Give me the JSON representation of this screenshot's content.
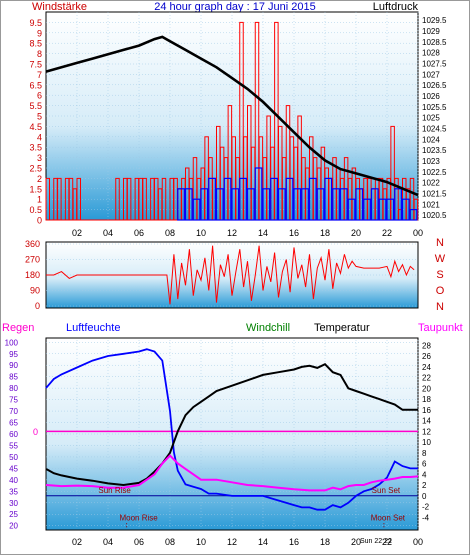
{
  "header": {
    "left_label": "Windstärke",
    "title": "24 hour graph day : 17 Juni 2015",
    "right_label": "Luftdruck"
  },
  "colors": {
    "wind_gust": "#ff0000",
    "wind_avg": "#0000ff",
    "pressure": "#000000",
    "direction": "#ff0000",
    "humidity": "#0000ff",
    "temperature": "#000000",
    "dewpoint": "#ff00ff",
    "rain": "#ff00cc",
    "windchill": "#008000",
    "axis_red": "#cc0000",
    "axis_purple": "#6600cc",
    "sun_line": "#000099"
  },
  "chart_data": [
    {
      "type": "bar",
      "title": "",
      "left_axis_title": "Windstärke",
      "right_axis_title": "Luftdruck",
      "x_ticks": [
        "02",
        "04",
        "06",
        "08",
        "10",
        "12",
        "14",
        "16",
        "18",
        "20",
        "22",
        "00"
      ],
      "y_left_ticks": [
        "0",
        "0.5",
        "1",
        "1.5",
        "2",
        "2.5",
        "3",
        "3.5",
        "4",
        "4.5",
        "5",
        "5.5",
        "6",
        "6.5",
        "7",
        "7.5",
        "8",
        "8.5",
        "9",
        "9.5"
      ],
      "y_left_range": [
        0,
        9.5
      ],
      "y_right_ticks": [
        "1020.5",
        "1021",
        "1021.5",
        "1022",
        "1022.5",
        "1023",
        "1023.5",
        "1024",
        "1024.5",
        "1025",
        "1025.5",
        "1026",
        "1026.5",
        "1027",
        "1027.5",
        "1028",
        "1028.5",
        "1029",
        "1029.5"
      ],
      "y_right_range": [
        1020.5,
        1029.5
      ],
      "series": [
        {
          "role": "gust",
          "x": [
            0,
            0.25,
            0.5,
            0.75,
            1,
            1.25,
            1.5,
            1.75,
            2,
            2.25,
            2.5,
            2.75,
            3,
            3.25,
            3.5,
            3.75,
            4,
            4.25,
            4.5,
            4.75,
            5,
            5.25,
            5.5,
            5.75,
            6,
            6.25,
            6.5,
            6.75,
            7,
            7.25,
            7.5,
            7.75,
            8,
            8.25,
            8.5,
            8.75,
            9,
            9.25,
            9.5,
            9.75,
            10,
            10.25,
            10.5,
            10.75,
            11,
            11.25,
            11.5,
            11.75,
            12,
            12.25,
            12.5,
            12.75,
            13,
            13.25,
            13.5,
            13.75,
            14,
            14.25,
            14.5,
            14.75,
            15,
            15.25,
            15.5,
            15.75,
            16,
            16.25,
            16.5,
            16.75,
            17,
            17.25,
            17.5,
            17.75,
            18,
            18.25,
            18.5,
            18.75,
            19,
            19.25,
            19.5,
            19.75,
            20,
            20.25,
            20.5,
            20.75,
            21,
            21.25,
            21.5,
            21.75,
            22,
            22.25,
            22.5,
            22.75,
            23,
            23.25,
            23.5,
            23.75
          ],
          "values": [
            2,
            0,
            2,
            2,
            0,
            2,
            2,
            1.5,
            2,
            0,
            0,
            0,
            0,
            0,
            0,
            0,
            0,
            0,
            2,
            0,
            2,
            2,
            0,
            2,
            2,
            2,
            0,
            2,
            2,
            1.5,
            2,
            0,
            2,
            2,
            1.5,
            2,
            2.5,
            2,
            3,
            2,
            2.5,
            4,
            3,
            2,
            4.5,
            3.5,
            3,
            5.5,
            4,
            3,
            9.5,
            4,
            5.5,
            3.5,
            9.5,
            4,
            3,
            5,
            3.5,
            9.5,
            4.5,
            3,
            5.5,
            4,
            3.5,
            5,
            3,
            2.5,
            4,
            3,
            2.5,
            3.5,
            2.5,
            2,
            3,
            2.5,
            2,
            3,
            2,
            2.5,
            2,
            1.5,
            2,
            2,
            1.5,
            2,
            2,
            1.5,
            2,
            4.5,
            2,
            0.5,
            2,
            1.5,
            2,
            1
          ]
        },
        {
          "role": "average",
          "x": [
            8.5,
            9,
            9.5,
            10,
            10.5,
            11,
            11.5,
            12,
            12.5,
            13,
            13.5,
            14,
            14.5,
            15,
            15.5,
            16,
            16.5,
            17,
            17.5,
            18,
            18.5,
            19,
            19.5,
            20,
            20.5,
            21,
            21.5,
            22,
            22.5,
            23,
            23.5
          ],
          "values": [
            1.5,
            1.5,
            1,
            1.5,
            2,
            1.5,
            2,
            1.5,
            2,
            1.5,
            2.5,
            1.5,
            2,
            1.5,
            2,
            1.5,
            1.5,
            2,
            1.5,
            2,
            1.5,
            1.5,
            1,
            1.5,
            1,
            1.5,
            1,
            1,
            1.5,
            1,
            0.5
          ]
        },
        {
          "role": "pressure",
          "x": [
            0,
            1,
            2,
            3,
            4,
            5,
            6,
            7,
            7.5,
            8,
            9,
            10,
            11,
            12,
            13,
            14,
            15,
            16,
            17,
            18,
            19,
            20,
            21,
            22,
            23,
            24
          ],
          "values": [
            1027.1,
            1027.3,
            1027.5,
            1027.7,
            1027.9,
            1028.1,
            1028.3,
            1028.6,
            1028.7,
            1028.5,
            1028.1,
            1027.7,
            1027.3,
            1026.8,
            1026.3,
            1025.7,
            1025,
            1024.3,
            1023.6,
            1023,
            1022.6,
            1022.4,
            1022.2,
            1022,
            1021.7,
            1021.4
          ]
        }
      ]
    },
    {
      "type": "line",
      "title": "",
      "compass_labels": [
        "N",
        "W",
        "S",
        "O",
        "N"
      ],
      "y_ticks": [
        "0",
        "90",
        "180",
        "270",
        "360"
      ],
      "y_range": [
        0,
        360
      ],
      "x_range": [
        0,
        24
      ],
      "series": [
        {
          "role": "direction",
          "x": [
            0,
            0.5,
            1,
            1.5,
            2,
            3,
            4,
            5,
            6,
            7,
            7.8,
            8,
            8.25,
            8.5,
            8.75,
            9,
            9.25,
            9.5,
            9.75,
            10,
            10.25,
            10.5,
            10.75,
            11,
            11.25,
            11.5,
            11.75,
            12,
            12.25,
            12.5,
            12.75,
            13,
            13.25,
            13.5,
            13.75,
            14,
            14.25,
            14.5,
            14.75,
            15,
            15.25,
            15.5,
            15.75,
            16,
            16.25,
            16.5,
            16.75,
            17,
            17.25,
            17.5,
            17.75,
            18,
            18.25,
            18.5,
            18.75,
            19,
            19.25,
            19.5,
            19.75,
            20,
            20.5,
            21,
            21.5,
            22,
            22.25,
            22.5,
            22.75,
            23,
            23.25,
            23.5,
            23.75
          ],
          "values": [
            180,
            180,
            200,
            160,
            180,
            180,
            180,
            180,
            180,
            180,
            180,
            10,
            300,
            40,
            250,
            120,
            330,
            60,
            210,
            150,
            280,
            90,
            350,
            20,
            240,
            170,
            300,
            60,
            200,
            330,
            110,
            260,
            30,
            180,
            350,
            90,
            230,
            140,
            310,
            50,
            200,
            270,
            80,
            340,
            160,
            240,
            110,
            300,
            40,
            220,
            280,
            150,
            330,
            100,
            250,
            190,
            300,
            220,
            260,
            230,
            220,
            220,
            220,
            230,
            170,
            260,
            200,
            240,
            180,
            230,
            210
          ]
        }
      ]
    },
    {
      "type": "line",
      "title": "",
      "legend": [
        "Regen",
        "Luftfeuchte",
        "Windchill",
        "Temperatur",
        "Taupunkt"
      ],
      "x_ticks": [
        "02",
        "04",
        "06",
        "08",
        "10",
        "12",
        "14",
        "16",
        "18",
        "20",
        "22",
        "00"
      ],
      "y_left_ticks": [
        "20",
        "25",
        "30",
        "35",
        "40",
        "45",
        "50",
        "55",
        "60",
        "65",
        "70",
        "75",
        "80",
        "85",
        "90",
        "95",
        "100"
      ],
      "y_left_range": [
        20,
        100
      ],
      "y_right_ticks": [
        "-4",
        "-2",
        "0",
        "2",
        "4",
        "6",
        "8",
        "10",
        "12",
        "14",
        "16",
        "18",
        "20",
        "22",
        "24",
        "26",
        "28"
      ],
      "y_right_range": [
        -6,
        29
      ],
      "rain_label": "0",
      "annotations": [
        {
          "label": "Sun Rise",
          "x": 5.2
        },
        {
          "label": "Sun Set",
          "x": 21.8
        },
        {
          "label": "Moon Rise",
          "x": 5.2
        },
        {
          "label": "Moon Set",
          "x": 21.8
        },
        {
          "label": "Sun 22 22",
          "x": 21.8
        }
      ],
      "series": [
        {
          "name": "Luftfeuchte",
          "x": [
            0,
            0.5,
            1,
            2,
            3,
            4,
            5,
            6,
            6.5,
            7,
            7.5,
            8,
            8.25,
            8.5,
            9,
            9.5,
            10,
            10.5,
            11,
            12,
            13,
            14,
            15,
            16,
            16.5,
            17,
            17.5,
            18,
            18.5,
            19,
            19.5,
            20,
            20.5,
            21,
            21.5,
            22,
            22.5,
            23,
            23.5,
            24
          ],
          "values": [
            80,
            84,
            86,
            89,
            92,
            94,
            95,
            96,
            97,
            96,
            92,
            70,
            52,
            44,
            38,
            37,
            36,
            34,
            34,
            33,
            33,
            33,
            31,
            29,
            28,
            28,
            27,
            27,
            29,
            28,
            30,
            33,
            35,
            36,
            38,
            41,
            48,
            46,
            45,
            45
          ]
        },
        {
          "name": "Temperatur",
          "x": [
            0,
            0.5,
            1,
            2,
            3,
            4,
            5,
            6,
            6.5,
            7,
            7.5,
            8,
            8.5,
            9,
            9.5,
            10,
            10.5,
            11,
            12,
            13,
            14,
            15,
            16,
            16.5,
            17,
            17.5,
            18,
            18.5,
            19,
            19.5,
            20,
            20.5,
            21,
            21.5,
            22,
            22.5,
            23,
            23.5,
            24
          ],
          "values": [
            5,
            4.2,
            3.8,
            3.2,
            2.8,
            2.3,
            2,
            2.4,
            3.2,
            4.5,
            6,
            8,
            12,
            15,
            16.5,
            17.5,
            18.5,
            19.5,
            20.5,
            21.5,
            22.5,
            23,
            23.5,
            24,
            24.2,
            23.8,
            24.5,
            23,
            22.5,
            20,
            19.5,
            19,
            18.5,
            18,
            17.5,
            17,
            16,
            16,
            16
          ]
        },
        {
          "name": "Taupunkt",
          "x": [
            0,
            1,
            2,
            3,
            4,
            5,
            6,
            6.5,
            7,
            7.5,
            8,
            8.5,
            9,
            9.5,
            10,
            11,
            12,
            13,
            14,
            15,
            16,
            17,
            18,
            18.5,
            19,
            19.5,
            20,
            20.5,
            21,
            21.5,
            22,
            22.5,
            23,
            23.5,
            24
          ],
          "values": [
            2,
            1.8,
            1.9,
            1.8,
            1.5,
            1.5,
            2,
            3,
            4,
            6,
            7.5,
            6,
            5,
            4,
            3,
            3,
            2.5,
            2,
            1.8,
            1.5,
            1.2,
            1,
            1,
            1.5,
            1.2,
            1.8,
            2,
            2,
            2.5,
            2.8,
            3,
            3.2,
            3.5,
            3.5,
            3.6
          ]
        },
        {
          "name": "Regen",
          "x": [
            0,
            24
          ],
          "values": [
            12,
            12
          ]
        }
      ]
    }
  ]
}
